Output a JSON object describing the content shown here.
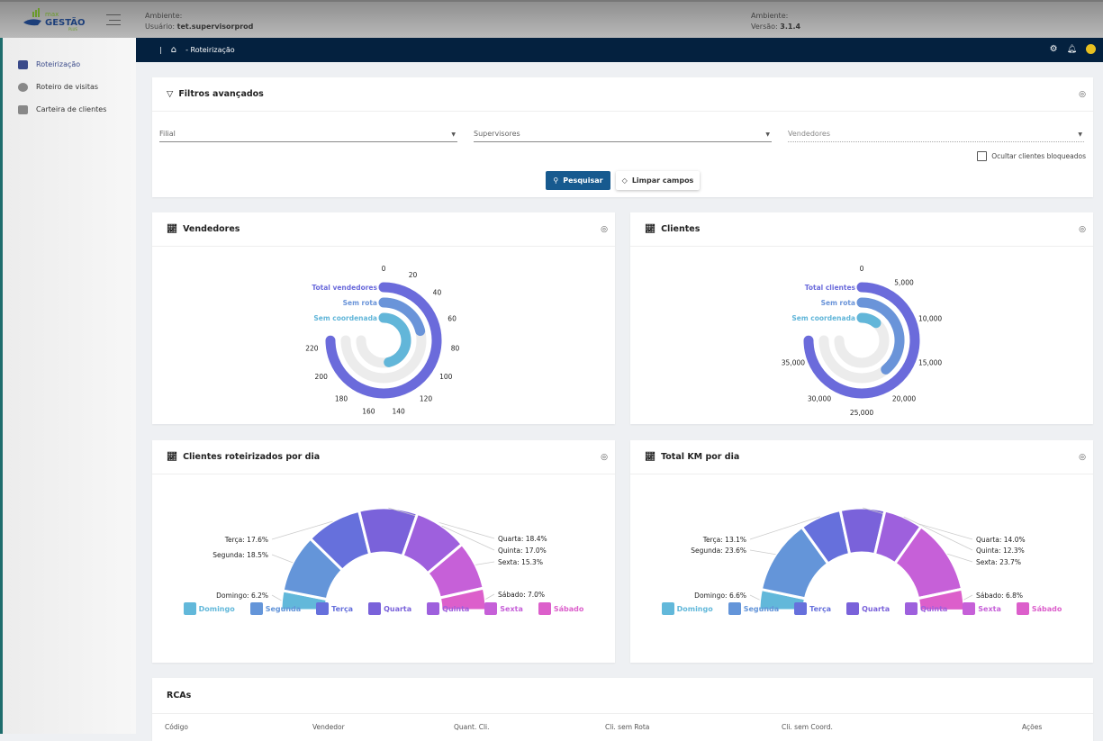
{
  "header": {
    "brand": "max GESTÃO PLUS",
    "ambiente_label": "Ambiente:",
    "usuario_label": "Usuário:",
    "usuario": "tet.supervisorprod",
    "ambiente2_label": "Ambiente:",
    "versao_label": "Versão:",
    "versao": "3.1.4"
  },
  "sidebar": {
    "items": [
      {
        "label": "Roteirização",
        "icon": "map-users-icon"
      },
      {
        "label": "Roteiro de visitas",
        "icon": "gear-icon"
      },
      {
        "label": "Carteira de clientes",
        "icon": "wallet-icon"
      }
    ]
  },
  "nav": {
    "separator": "|",
    "breadcrumb": "- Roteirização"
  },
  "filters": {
    "title": "Filtros avançados",
    "filial": "Filial",
    "supervisores": "Supervisores",
    "vendedores": "Vendedores",
    "ocultar": "Ocultar clientes bloqueados",
    "search": "Pesquisar",
    "clear": "Limpar campos"
  },
  "colors": {
    "navy": "#04213f",
    "primary": "#175a8f",
    "days": [
      "#62b8da",
      "#6495d9",
      "#6670dc",
      "#7a62da",
      "#9e60dd",
      "#c660d8",
      "#dc5fcb"
    ],
    "radial": [
      "#6b6bdb",
      "#6a94d9",
      "#62b6d9"
    ]
  },
  "chart_data": [
    {
      "type": "radial-bar",
      "title": "Vendedores",
      "series": [
        {
          "name": "Total vendedores",
          "value": 225
        },
        {
          "name": "Sem rota",
          "value": 63
        },
        {
          "name": "Sem coordenada",
          "value": 139
        }
      ],
      "max": 225,
      "ticks": [
        0,
        20,
        40,
        60,
        80,
        100,
        120,
        140,
        160,
        180,
        200,
        220
      ],
      "tick_labels": [
        "0",
        "20",
        "40",
        "60",
        "80",
        "100",
        "120",
        "140",
        "160",
        "180",
        "200",
        "220"
      ]
    },
    {
      "type": "radial-bar",
      "title": "Clientes",
      "series": [
        {
          "name": "Total clientes",
          "value": 37500
        },
        {
          "name": "Sem rota",
          "value": 19500
        },
        {
          "name": "Sem coordenada",
          "value": 5500
        }
      ],
      "max": 37500,
      "ticks": [
        0,
        5000,
        10000,
        15000,
        20000,
        25000,
        30000,
        35000
      ],
      "tick_labels": [
        "0",
        "5,000",
        "10,000",
        "15,000",
        "20,000",
        "25,000",
        "30,000",
        "35,000"
      ]
    },
    {
      "type": "pie",
      "subtype": "semi-donut",
      "title": "Clientes roteirizados por dia",
      "categories": [
        "Domingo",
        "Segunda",
        "Terça",
        "Quarta",
        "Quinta",
        "Sexta",
        "Sábado"
      ],
      "values": [
        6.2,
        18.5,
        17.6,
        18.4,
        17.0,
        15.3,
        7.0
      ],
      "labels": [
        "Domingo: 6.2%",
        "Segunda: 18.5%",
        "Terça: 17.6%",
        "Quarta: 18.4%",
        "Quinta: 17.0%",
        "Sexta: 15.3%",
        "Sábado: 7.0%"
      ],
      "legend": "bottom"
    },
    {
      "type": "pie",
      "subtype": "semi-donut",
      "title": "Total KM por dia",
      "categories": [
        "Domingo",
        "Segunda",
        "Terça",
        "Quarta",
        "Quinta",
        "Sexta",
        "Sábado"
      ],
      "values": [
        6.6,
        23.6,
        13.1,
        14.0,
        12.3,
        23.7,
        6.8
      ],
      "labels": [
        "Domingo: 6.6%",
        "Segunda: 23.6%",
        "Terça: 13.1%",
        "Quarta: 14.0%",
        "Quinta: 12.3%",
        "Sexta: 23.7%",
        "Sábado: 6.8%"
      ],
      "legend": "bottom"
    }
  ],
  "rcas": {
    "title": "RCAs",
    "columns": [
      "Código",
      "Vendedor",
      "Quant. Cli.",
      "Cli. sem Rota",
      "Cli. sem Coord.",
      "Ações"
    ]
  }
}
